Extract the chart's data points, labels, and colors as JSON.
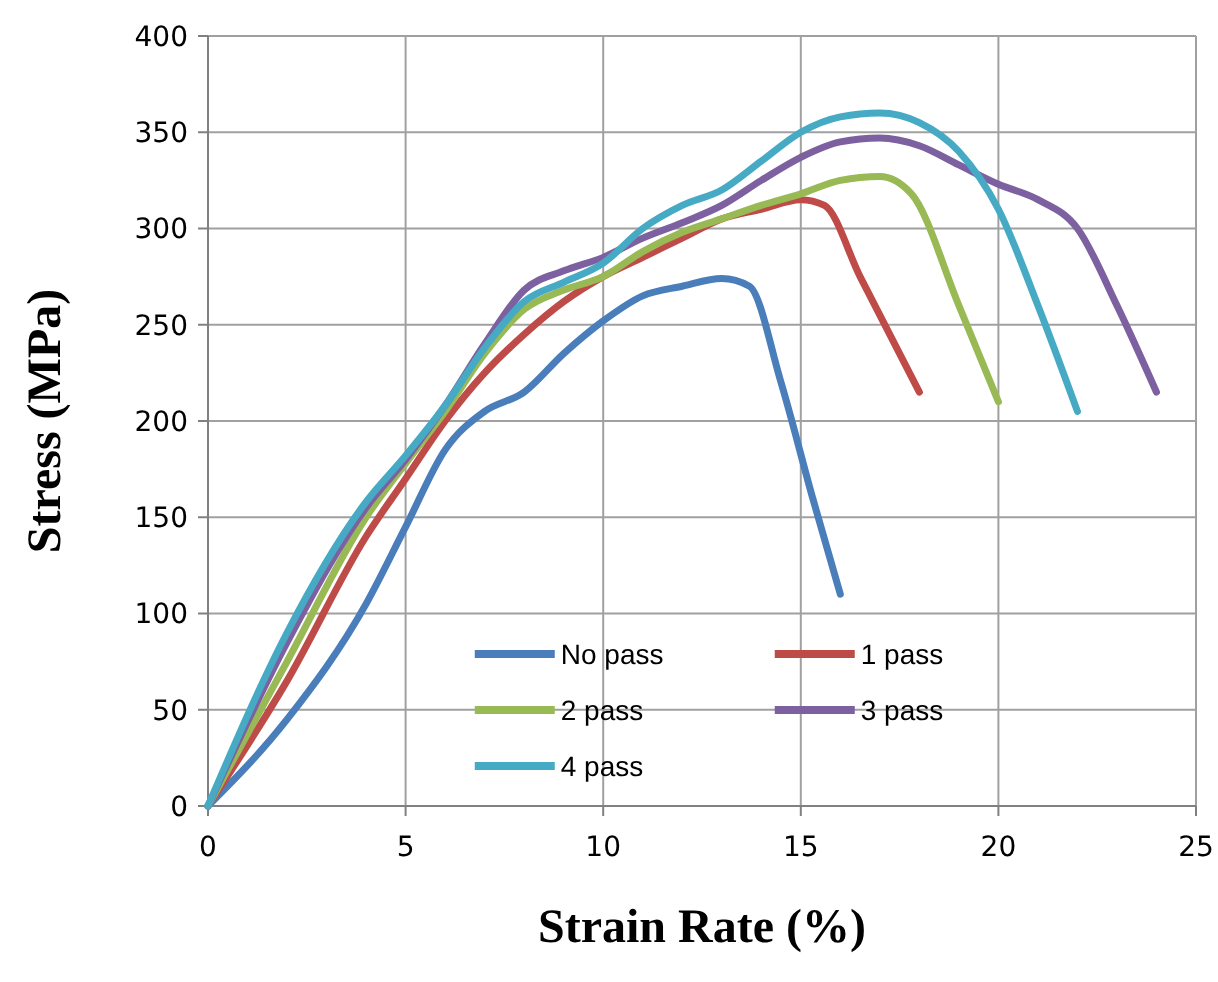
{
  "chart_data": {
    "type": "line",
    "xlabel": "Strain Rate (%)",
    "ylabel": "Stress (MPa)",
    "xlim": [
      0,
      25
    ],
    "xticks": [
      0,
      5,
      10,
      15,
      20,
      25
    ],
    "ylim": [
      0,
      400
    ],
    "yticks": [
      0,
      50,
      100,
      150,
      200,
      250,
      300,
      350,
      400
    ],
    "grid": true,
    "legend": "bottom",
    "marker": "none",
    "line_style": "solid",
    "series": [
      {
        "name": "No pass",
        "color": "#4a7ebb",
        "x": [
          0,
          2,
          4,
          5,
          6,
          7,
          8,
          9,
          10,
          11,
          12,
          13,
          13.7,
          14.5,
          15.3,
          16
        ],
        "values": [
          0,
          45,
          105,
          145,
          185,
          205,
          215,
          235,
          252,
          265,
          270,
          274,
          270,
          220,
          160,
          110
        ]
      },
      {
        "name": "1 pass",
        "color": "#be4b48",
        "x": [
          0,
          2,
          4,
          5,
          6,
          7,
          8,
          9,
          10,
          11,
          12,
          13,
          14,
          15,
          15.6,
          16.5,
          18
        ],
        "values": [
          0,
          65,
          140,
          170,
          200,
          225,
          245,
          262,
          275,
          285,
          295,
          305,
          310,
          315,
          312,
          275,
          215
        ]
      },
      {
        "name": "2 pass",
        "color": "#98b954",
        "x": [
          0,
          2,
          4,
          5,
          6,
          7,
          8,
          9,
          10,
          11,
          12,
          13,
          14,
          15,
          16,
          17,
          17.8,
          19,
          20
        ],
        "values": [
          0,
          75,
          150,
          178,
          205,
          235,
          258,
          268,
          275,
          288,
          298,
          305,
          312,
          318,
          325,
          327,
          318,
          260,
          210
        ]
      },
      {
        "name": "3 pass",
        "color": "#7d60a0",
        "x": [
          0,
          2,
          4,
          5,
          6,
          7,
          8,
          9,
          10,
          11,
          12,
          13,
          14,
          15,
          16,
          17,
          18,
          19,
          20,
          21,
          22,
          23,
          24
        ],
        "values": [
          0,
          85,
          155,
          180,
          208,
          240,
          268,
          278,
          285,
          295,
          303,
          312,
          325,
          337,
          345,
          347,
          343,
          333,
          323,
          315,
          300,
          260,
          215
        ]
      },
      {
        "name": "4 pass",
        "color": "#46aac5",
        "x": [
          0,
          2,
          4,
          5,
          6,
          7,
          8,
          9,
          10,
          11,
          12,
          13,
          14,
          15,
          16,
          17,
          18,
          19,
          20,
          21,
          22
        ],
        "values": [
          0,
          90,
          158,
          182,
          208,
          238,
          262,
          272,
          282,
          300,
          312,
          320,
          335,
          350,
          358,
          360,
          355,
          340,
          310,
          260,
          205
        ]
      }
    ]
  }
}
